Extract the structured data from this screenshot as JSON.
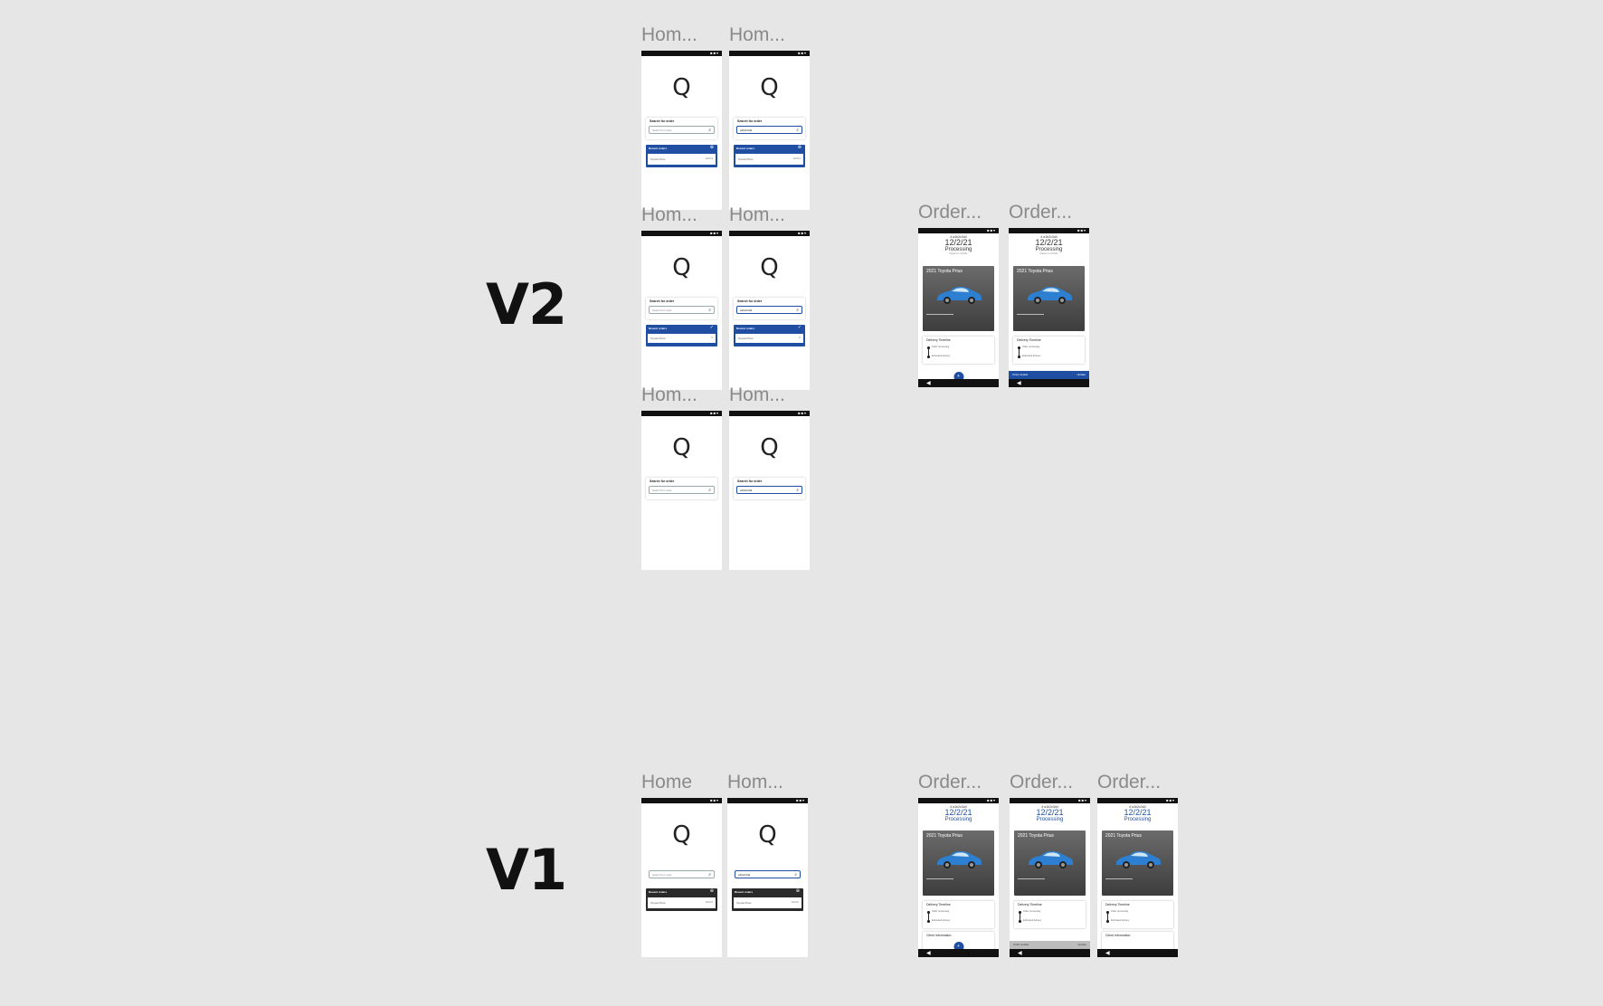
{
  "sections": {
    "v2": "V2",
    "v1": "V1"
  },
  "frames": {
    "v2_home_1": "Hom...",
    "v2_home_2": "Hom...",
    "v2_home_3": "Hom...",
    "v2_home_4": "Hom...",
    "v2_home_5": "Hom...",
    "v2_home_6": "Hom...",
    "v2_order_1": "Order...",
    "v2_order_2": "Order...",
    "v1_home_1": "Home",
    "v1_home_2": "Hom...",
    "v1_order_1": "Order...",
    "v1_order_2": "Order...",
    "v1_order_3": "Order..."
  },
  "home": {
    "logo": "Q",
    "search_title": "Search for order",
    "search_placeholder": "Search for order",
    "search_value": "a1b2c3d4",
    "search_icon": "magnifier-icon",
    "recent_title": "Recent orders",
    "recent_row": "Toyota Prius",
    "recent_row_value": "12/2/21"
  },
  "order": {
    "order_id": "# a1b2c3d4",
    "date": "12/2/21",
    "status": "Processing",
    "subtitle": "Placed on 12/2/21",
    "car_title": "2021 Toyota Prius",
    "timeline_title": "Delivery Timeline",
    "timeline_step_1": "Order processing",
    "timeline_step_2": "Estimated delivery",
    "info_title": "Client Information",
    "action_left": "Order details",
    "action_right": "Update",
    "back_glyph": "◀",
    "fab_glyph": "+"
  },
  "colors": {
    "accent": "#1f4ea3",
    "dark_card": "#2a2a2a",
    "canvas": "#e6e6e6"
  }
}
